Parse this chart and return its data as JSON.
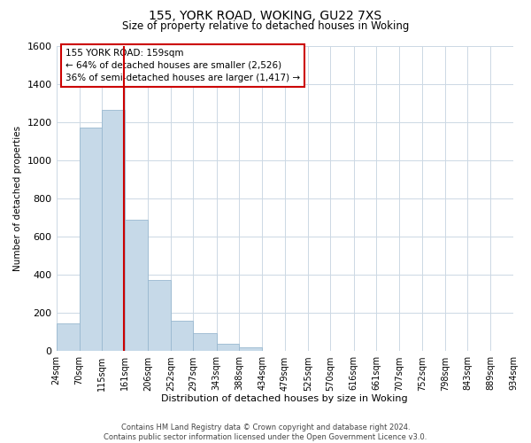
{
  "title1": "155, YORK ROAD, WOKING, GU22 7XS",
  "title2": "Size of property relative to detached houses in Woking",
  "xlabel": "Distribution of detached houses by size in Woking",
  "ylabel": "Number of detached properties",
  "bar_edges": [
    24,
    70,
    115,
    161,
    206,
    252,
    297,
    343,
    388,
    434,
    479,
    525,
    570,
    616,
    661,
    707,
    752,
    798,
    843,
    889,
    934
  ],
  "bar_heights": [
    148,
    1172,
    1262,
    688,
    375,
    160,
    93,
    37,
    22,
    0,
    0,
    0,
    0,
    0,
    0,
    0,
    0,
    0,
    0,
    0
  ],
  "bar_color": "#c6d9e8",
  "bar_edgecolor": "#99b8d0",
  "property_line_x": 159,
  "property_line_color": "#cc0000",
  "annotation_line1": "155 YORK ROAD: 159sqm",
  "annotation_line2": "← 64% of detached houses are smaller (2,526)",
  "annotation_line3": "36% of semi-detached houses are larger (1,417) →",
  "annotation_box_edgecolor": "#cc0000",
  "annotation_box_facecolor": "#ffffff",
  "ylim": [
    0,
    1600
  ],
  "yticks": [
    0,
    200,
    400,
    600,
    800,
    1000,
    1200,
    1400,
    1600
  ],
  "tick_labels": [
    "24sqm",
    "70sqm",
    "115sqm",
    "161sqm",
    "206sqm",
    "252sqm",
    "297sqm",
    "343sqm",
    "388sqm",
    "434sqm",
    "479sqm",
    "525sqm",
    "570sqm",
    "616sqm",
    "661sqm",
    "707sqm",
    "752sqm",
    "798sqm",
    "843sqm",
    "889sqm",
    "934sqm"
  ],
  "footer_line1": "Contains HM Land Registry data © Crown copyright and database right 2024.",
  "footer_line2": "Contains public sector information licensed under the Open Government Licence v3.0.",
  "background_color": "#ffffff",
  "grid_color": "#ccd8e4"
}
